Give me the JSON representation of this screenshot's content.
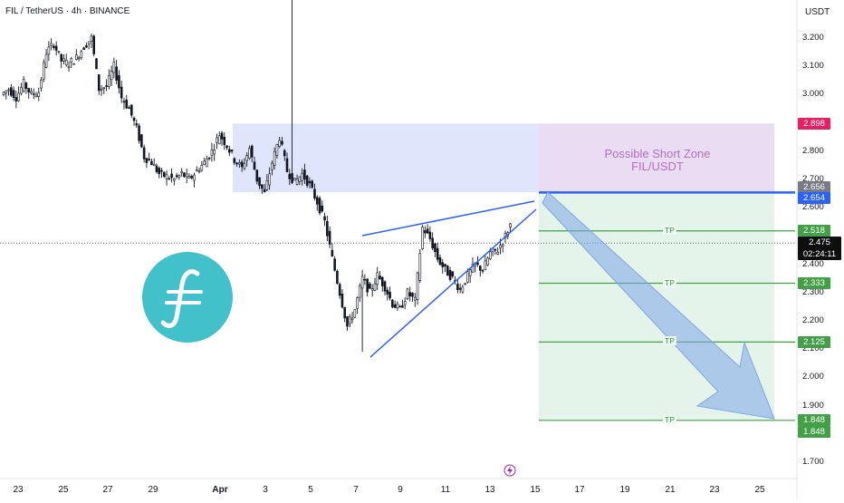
{
  "title": "FIL / TetherUS · 4h · BINANCE",
  "currency": "USDT",
  "zone_label": [
    "Possible Short Zone",
    "FIL/USDT"
  ],
  "tp_label": "TP",
  "current_price": "2.475",
  "countdown": "02:24:11",
  "colors": {
    "bull": "#ffffff",
    "bear": "#131722",
    "zone": "#dfe6fb",
    "short": "#e9dcf3",
    "target": "#e4f4ea",
    "entry_line": "#2962ff",
    "tp_line": "#43a047",
    "wedge": "#2962ff",
    "arrow": "#7fa6e8",
    "logo": "#42c1ca"
  },
  "icons": [
    "filecoin-logo-icon",
    "lightning-icon"
  ],
  "chart_data": {
    "type": "candlestick",
    "title": "FIL / TetherUS · 4h · BINANCE",
    "ylim": [
      1.65,
      3.35
    ],
    "y_ticks": [
      "3.200",
      "3.100",
      "3.000",
      "2.900",
      "2.800",
      "2.700",
      "2.600",
      "2.500",
      "2.400",
      "2.300",
      "2.200",
      "2.100",
      "2.000",
      "1.900",
      "1.800",
      "1.700"
    ],
    "x_ticks": [
      "23",
      "25",
      "27",
      "29",
      "Apr",
      "3",
      "5",
      "7",
      "9",
      "11",
      "13",
      "15",
      "17",
      "19",
      "21",
      "23",
      "25"
    ],
    "close_path": [
      3.0,
      3.02,
      2.99,
      3.04,
      3.0,
      3.01,
      3.15,
      3.18,
      3.12,
      3.11,
      3.13,
      3.17,
      3.2,
      3.02,
      3.03,
      3.1,
      2.99,
      2.95,
      2.88,
      2.78,
      2.76,
      2.72,
      2.71,
      2.7,
      2.72,
      2.7,
      2.73,
      2.76,
      2.8,
      2.86,
      2.82,
      2.77,
      2.74,
      2.81,
      2.7,
      2.65,
      2.76,
      2.85,
      2.73,
      2.69,
      2.72,
      2.68,
      2.62,
      2.55,
      2.42,
      2.3,
      2.18,
      2.24,
      2.35,
      2.3,
      2.36,
      2.32,
      2.26,
      2.24,
      2.3,
      2.27,
      2.53,
      2.49,
      2.42,
      2.38,
      2.35,
      2.31,
      2.36,
      2.4,
      2.38,
      2.44,
      2.45,
      2.5,
      2.56,
      2.53,
      2.51,
      2.49,
      2.47
    ],
    "supply_zone": [
      2.655,
      2.898
    ],
    "short_zone": [
      2.654,
      2.898
    ],
    "entry": 2.654,
    "take_profits": [
      2.518,
      2.333,
      2.125,
      1.848
    ],
    "price_labels": [
      "2.898",
      "2.656",
      "2.654",
      "2.518",
      "2.333",
      "2.125",
      "1.848",
      "1.848"
    ],
    "wedge_upper": [
      [
        2.52,
        2.61
      ]
    ],
    "wedge_lower": [
      [
        2.08,
        2.51
      ]
    ],
    "grid": false
  }
}
